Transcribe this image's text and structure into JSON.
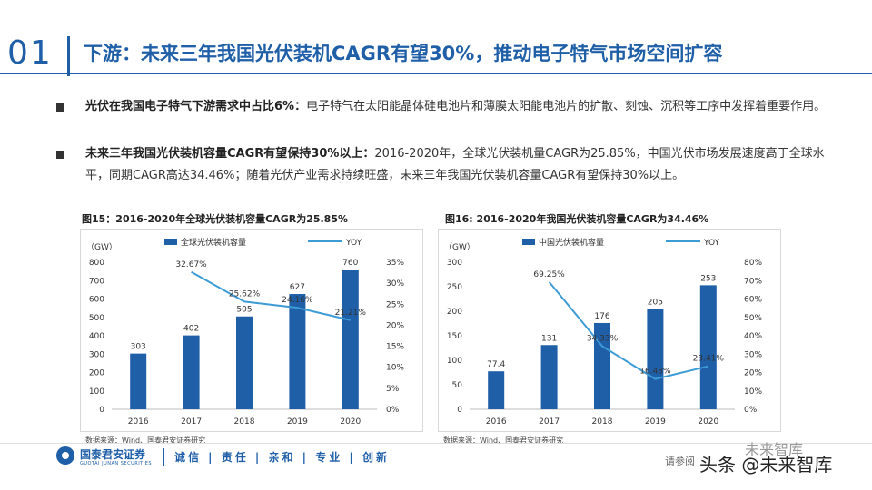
{
  "header": {
    "section_number": "01",
    "title": "下游：未来三年我国光伏装机CAGR有望30%，推动电子特气市场空间扩容"
  },
  "bullets": [
    {
      "bold": "光伏在我国电子特气下游需求中占比6%：",
      "text": "电子特气在太阳能晶体硅电池片和薄膜太阳能电池片的扩散、刻蚀、沉积等工序中发挥着重要作用。"
    },
    {
      "bold": "未来三年我国光伏装机容量CAGR有望保持30%以上：",
      "text": "2016-2020年，全球光伏装机量CAGR为25.85%，中国光伏市场发展速度高于全球水平，同期CAGR高达34.46%；随着光伏产业需求持续旺盛，未来三年我国光伏装机容量CAGR有望保持30%以上。"
    }
  ],
  "chart_data": [
    {
      "type": "bar",
      "title": "图15：2016-2020年全球光伏装机容量CAGR为25.85%",
      "unit_label": "（GW）",
      "categories": [
        "2016",
        "2017",
        "2018",
        "2019",
        "2020"
      ],
      "series": [
        {
          "name": "全球光伏装机容量",
          "type": "bar",
          "axis": "left",
          "values": [
            303,
            402,
            505,
            627,
            760
          ],
          "labels": [
            "303",
            "402",
            "505",
            "627",
            "760"
          ]
        },
        {
          "name": "YOY",
          "type": "line",
          "axis": "right",
          "values": [
            null,
            32.67,
            25.62,
            24.16,
            21.21
          ],
          "labels": [
            "",
            "32.67%",
            "25.62%",
            "24.16%",
            "21.21%"
          ]
        }
      ],
      "y_left_ticks": [
        "800",
        "700",
        "600",
        "500",
        "400",
        "300",
        "200",
        "100",
        "0"
      ],
      "y_right_ticks": [
        "35%",
        "30%",
        "25%",
        "20%",
        "15%",
        "10%",
        "5%",
        "0%"
      ],
      "ylim_left": [
        0,
        800
      ],
      "ylim_right": [
        0,
        35
      ],
      "source": "数据来源：Wind、国泰君安证券研究"
    },
    {
      "type": "bar",
      "title": "图16: 2016-2020年我国光伏装机容量CAGR为34.46%",
      "unit_label": "（GW）",
      "categories": [
        "2016",
        "2017",
        "2018",
        "2019",
        "2020"
      ],
      "series": [
        {
          "name": "中国光伏装机容量",
          "type": "bar",
          "axis": "left",
          "values": [
            77.4,
            131,
            176,
            205,
            253
          ],
          "labels": [
            "77.4",
            "131",
            "176",
            "205",
            "253"
          ]
        },
        {
          "name": "YOY",
          "type": "line",
          "axis": "right",
          "values": [
            null,
            69.25,
            34.33,
            16.48,
            23.41
          ],
          "labels": [
            "",
            "69.25%",
            "34.33%",
            "16.48%",
            "23.41%"
          ]
        }
      ],
      "y_left_ticks": [
        "300",
        "250",
        "200",
        "150",
        "100",
        "50",
        "0"
      ],
      "y_right_ticks": [
        "80%",
        "70%",
        "60%",
        "50%",
        "40%",
        "30%",
        "20%",
        "10%",
        "0%"
      ],
      "ylim_left": [
        0,
        300
      ],
      "ylim_right": [
        0,
        80
      ],
      "source": "数据来源：Wind、国泰君安证券研究"
    }
  ],
  "colors": {
    "bar": "#1f5fa8",
    "line": "#3d9bd6",
    "accent": "#1f5fa8"
  },
  "footer": {
    "brand": "国泰君安证券",
    "brand_en": "GUOTAI JUNAN SECURITIES",
    "slogan": "诚信 | 责任 | 亲和 | 专业 | 创新",
    "read_note": "请参阅",
    "watermark_main": "头条 @未来智库",
    "watermark_small": "未来智库"
  }
}
